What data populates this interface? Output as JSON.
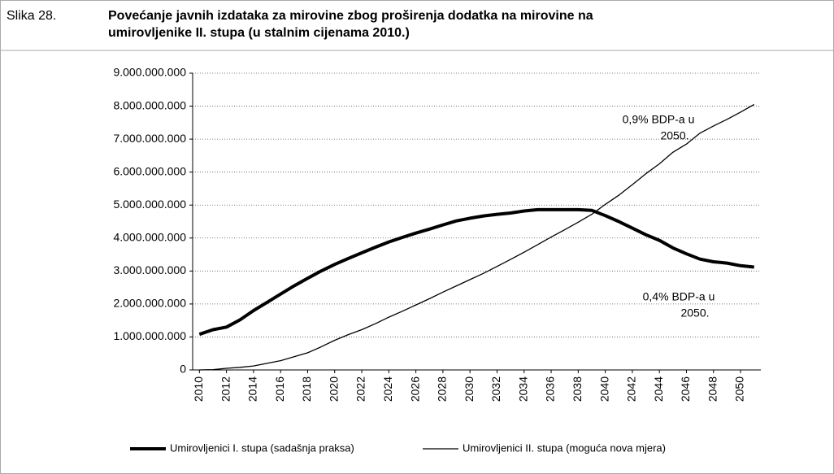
{
  "chart_data": {
    "type": "line",
    "figure_label": "Slika 28.",
    "title": [
      "Povećanje javnih izdataka za mirovine zbog proširenja dodatka na mirovine na",
      "umirovljenike II. stupa (u stalnim cijenama 2010.)"
    ],
    "x": [
      2010,
      2011,
      2012,
      2013,
      2014,
      2015,
      2016,
      2017,
      2018,
      2019,
      2020,
      2021,
      2022,
      2023,
      2024,
      2025,
      2026,
      2027,
      2028,
      2029,
      2030,
      2031,
      2032,
      2033,
      2034,
      2035,
      2036,
      2037,
      2038,
      2039,
      2040,
      2041,
      2042,
      2043,
      2044,
      2045,
      2046,
      2047,
      2048,
      2049,
      2050,
      2051
    ],
    "xlim": [
      2009.5,
      2051.5
    ],
    "xticks": [
      2010,
      2012,
      2014,
      2016,
      2018,
      2020,
      2022,
      2024,
      2026,
      2028,
      2030,
      2032,
      2034,
      2036,
      2038,
      2040,
      2042,
      2044,
      2046,
      2048,
      2050
    ],
    "ylim": [
      0,
      9000000000
    ],
    "yticks": [
      {
        "value": 0,
        "label": "0"
      },
      {
        "value": 1000000000,
        "label": "1.000.000.000"
      },
      {
        "value": 2000000000,
        "label": "2.000.000.000"
      },
      {
        "value": 3000000000,
        "label": "3.000.000.000"
      },
      {
        "value": 4000000000,
        "label": "4.000.000.000"
      },
      {
        "value": 5000000000,
        "label": "5.000.000.000"
      },
      {
        "value": 6000000000,
        "label": "6.000.000.000"
      },
      {
        "value": 7000000000,
        "label": "7.000.000.000"
      },
      {
        "value": 8000000000,
        "label": "8.000.000.000"
      },
      {
        "value": 9000000000,
        "label": "9.000.000.000"
      }
    ],
    "grid": true,
    "series": [
      {
        "name": "Umirovljenici I. stupa (sadašnja praksa)",
        "color": "#000000",
        "width": 4,
        "values": [
          1080000000,
          1220000000,
          1300000000,
          1520000000,
          1800000000,
          2050000000,
          2300000000,
          2550000000,
          2780000000,
          3000000000,
          3200000000,
          3380000000,
          3550000000,
          3720000000,
          3880000000,
          4020000000,
          4150000000,
          4270000000,
          4400000000,
          4520000000,
          4600000000,
          4670000000,
          4720000000,
          4760000000,
          4820000000,
          4860000000,
          4860000000,
          4860000000,
          4860000000,
          4840000000,
          4680000000,
          4500000000,
          4300000000,
          4100000000,
          3930000000,
          3700000000,
          3520000000,
          3360000000,
          3280000000,
          3240000000,
          3160000000,
          3120000000
        ]
      },
      {
        "name": "Umirovljenici II. stupa (moguća nova mjera)",
        "color": "#000000",
        "width": 1.3,
        "values": [
          0,
          10000000,
          50000000,
          80000000,
          120000000,
          200000000,
          280000000,
          400000000,
          520000000,
          700000000,
          900000000,
          1070000000,
          1220000000,
          1400000000,
          1600000000,
          1780000000,
          1970000000,
          2160000000,
          2360000000,
          2550000000,
          2740000000,
          2930000000,
          3140000000,
          3350000000,
          3570000000,
          3800000000,
          4030000000,
          4250000000,
          4480000000,
          4720000000,
          5020000000,
          5300000000,
          5620000000,
          5950000000,
          6250000000,
          6600000000,
          6850000000,
          7180000000,
          7400000000,
          7600000000,
          7820000000,
          8050000000
        ]
      }
    ],
    "annotations": [
      {
        "lines": [
          "0,9% BDP-a u",
          "2050."
        ]
      },
      {
        "lines": [
          "0,4% BDP-a u",
          "2050."
        ]
      }
    ]
  }
}
